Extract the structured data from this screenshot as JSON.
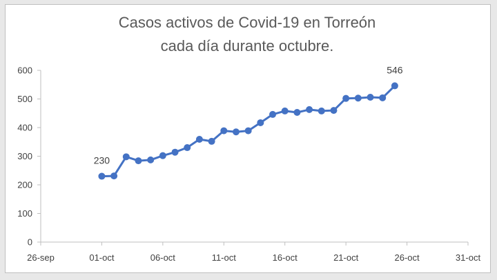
{
  "chart_data": {
    "type": "line",
    "title": "Casos activos de Covid-19 en Torreón",
    "subtitle": "cada día durante octubre.",
    "x_tick_labels": [
      "26-sep",
      "01-oct",
      "06-oct",
      "11-oct",
      "16-oct",
      "21-oct",
      "26-oct",
      "31-oct"
    ],
    "y_ticks": [
      0,
      100,
      200,
      300,
      400,
      500,
      600
    ],
    "ylim": [
      0,
      600
    ],
    "xlim": [
      "2020-09-26",
      "2020-10-31"
    ],
    "grid": false,
    "series_color": "#4472C4",
    "series": [
      {
        "x": [
          "2020-10-01",
          "2020-10-02",
          "2020-10-03",
          "2020-10-04",
          "2020-10-05",
          "2020-10-06",
          "2020-10-07",
          "2020-10-08",
          "2020-10-09",
          "2020-10-10",
          "2020-10-11",
          "2020-10-12",
          "2020-10-13",
          "2020-10-14",
          "2020-10-15",
          "2020-10-16",
          "2020-10-17",
          "2020-10-18",
          "2020-10-19",
          "2020-10-20",
          "2020-10-21",
          "2020-10-22",
          "2020-10-23",
          "2020-10-24",
          "2020-10-25"
        ],
        "values": [
          230,
          231,
          298,
          284,
          287,
          302,
          314,
          330,
          359,
          352,
          389,
          385,
          389,
          417,
          446,
          458,
          453,
          463,
          458,
          460,
          502,
          503,
          506,
          504,
          546
        ]
      }
    ],
    "data_labels": [
      {
        "x": "2020-10-01",
        "text": "230"
      },
      {
        "x": "2020-10-25",
        "text": "546"
      }
    ]
  }
}
